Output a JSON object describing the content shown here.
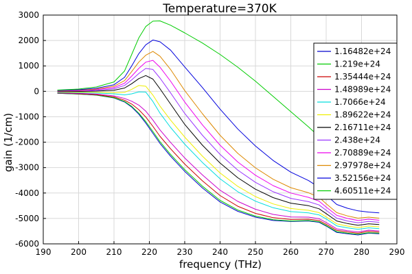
{
  "chart_data": {
    "type": "line",
    "title": "Temperature=370K",
    "xlabel": "frequency (THz)",
    "ylabel": "gain (1/cm)",
    "xlim": [
      190,
      290
    ],
    "ylim": [
      -6000,
      3000
    ],
    "xticks": [
      190,
      200,
      210,
      220,
      230,
      240,
      250,
      260,
      270,
      280,
      290
    ],
    "yticks": [
      -6000,
      -5000,
      -4000,
      -3000,
      -2000,
      -1000,
      0,
      1000,
      2000,
      3000
    ],
    "grid": true,
    "legend_position": "top-right",
    "x": [
      194,
      200,
      205,
      210,
      213,
      215,
      217,
      219,
      221,
      223,
      226,
      230,
      235,
      240,
      245,
      250,
      255,
      260,
      265,
      268,
      270,
      273,
      276,
      279,
      282,
      285
    ],
    "series": [
      {
        "name": "1.16482e+24",
        "color": "#0000cc",
        "values": [
          -80,
          -110,
          -150,
          -260,
          -420,
          -620,
          -900,
          -1250,
          -1650,
          -2050,
          -2550,
          -3150,
          -3800,
          -4350,
          -4720,
          -4950,
          -5080,
          -5120,
          -5100,
          -5150,
          -5300,
          -5550,
          -5600,
          -5650,
          -5580,
          -5600
        ]
      },
      {
        "name": "1.219e+24",
        "color": "#00cc00",
        "values": [
          -78,
          -105,
          -145,
          -250,
          -400,
          -590,
          -860,
          -1190,
          -1580,
          -1980,
          -2480,
          -3080,
          -3730,
          -4290,
          -4670,
          -4910,
          -5050,
          -5100,
          -5080,
          -5130,
          -5280,
          -5520,
          -5580,
          -5620,
          -5560,
          -5580
        ]
      },
      {
        "name": "1.35444e+24",
        "color": "#cc0000",
        "values": [
          -70,
          -95,
          -130,
          -220,
          -350,
          -500,
          -720,
          -1010,
          -1380,
          -1770,
          -2260,
          -2860,
          -3520,
          -4100,
          -4520,
          -4800,
          -4970,
          -5040,
          -5030,
          -5080,
          -5230,
          -5470,
          -5530,
          -5580,
          -5510,
          -5540
        ]
      },
      {
        "name": "1.48989e+24",
        "color": "#cc00cc",
        "values": [
          -60,
          -80,
          -110,
          -180,
          -280,
          -390,
          -540,
          -780,
          -1130,
          -1520,
          -2010,
          -2620,
          -3290,
          -3890,
          -4330,
          -4640,
          -4840,
          -4940,
          -4950,
          -5010,
          -5160,
          -5410,
          -5480,
          -5530,
          -5460,
          -5490
        ]
      },
      {
        "name": "1.7066e+24",
        "color": "#00dddd",
        "values": [
          -45,
          -55,
          -70,
          -100,
          -140,
          -100,
          -20,
          -30,
          -400,
          -860,
          -1420,
          -2080,
          -2800,
          -3440,
          -3950,
          -4320,
          -4580,
          -4730,
          -4780,
          -4860,
          -5020,
          -5290,
          -5370,
          -5430,
          -5370,
          -5400
        ]
      },
      {
        "name": "1.89622e+24",
        "color": "#eeee00",
        "values": [
          -30,
          -35,
          -40,
          -50,
          -40,
          80,
          230,
          200,
          -150,
          -580,
          -1130,
          -1800,
          -2550,
          -3210,
          -3740,
          -4140,
          -4430,
          -4610,
          -4680,
          -4770,
          -4940,
          -5210,
          -5300,
          -5360,
          -5300,
          -5330
        ]
      },
      {
        "name": "2.16711e+24",
        "color": "#000000",
        "values": [
          -10,
          -5,
          10,
          40,
          130,
          300,
          500,
          620,
          480,
          100,
          -500,
          -1300,
          -2120,
          -2820,
          -3400,
          -3850,
          -4180,
          -4400,
          -4500,
          -4620,
          -4810,
          -5100,
          -5200,
          -5270,
          -5210,
          -5240
        ]
      },
      {
        "name": "2.438e+24",
        "color": "#9933ff",
        "values": [
          5,
          20,
          40,
          100,
          230,
          450,
          700,
          900,
          860,
          520,
          -60,
          -870,
          -1730,
          -2480,
          -3100,
          -3580,
          -3950,
          -4210,
          -4340,
          -4470,
          -4680,
          -4990,
          -5100,
          -5170,
          -5120,
          -5150
        ]
      },
      {
        "name": "2.70889e+24",
        "color": "#ee00ee",
        "values": [
          15,
          35,
          65,
          150,
          320,
          600,
          900,
          1150,
          1220,
          950,
          400,
          -420,
          -1320,
          -2120,
          -2780,
          -3300,
          -3710,
          -4000,
          -4170,
          -4320,
          -4550,
          -4880,
          -5000,
          -5080,
          -5030,
          -5070
        ]
      },
      {
        "name": "2.97978e+24",
        "color": "#dd8800",
        "values": [
          25,
          50,
          90,
          200,
          420,
          780,
          1150,
          1420,
          1570,
          1380,
          860,
          30,
          -880,
          -1730,
          -2440,
          -3010,
          -3460,
          -3790,
          -3990,
          -4170,
          -4420,
          -4770,
          -4900,
          -4990,
          -4950,
          -4990
        ]
      },
      {
        "name": "3.52156e+24",
        "color": "#0000dd",
        "values": [
          35,
          65,
          120,
          260,
          550,
          1000,
          1480,
          1830,
          2020,
          1950,
          1620,
          960,
          150,
          -700,
          -1480,
          -2150,
          -2720,
          -3180,
          -3510,
          -3780,
          -4080,
          -4450,
          -4600,
          -4700,
          -4750,
          -4780
        ]
      },
      {
        "name": "4.60511e+24",
        "color": "#00cc00",
        "values": [
          50,
          90,
          170,
          370,
          800,
          1450,
          2100,
          2550,
          2760,
          2770,
          2600,
          2300,
          1900,
          1450,
          950,
          400,
          -200,
          -800,
          -1400,
          -1780,
          -2050,
          -2480,
          -2800,
          -3050,
          -3250,
          -3420
        ]
      }
    ]
  }
}
